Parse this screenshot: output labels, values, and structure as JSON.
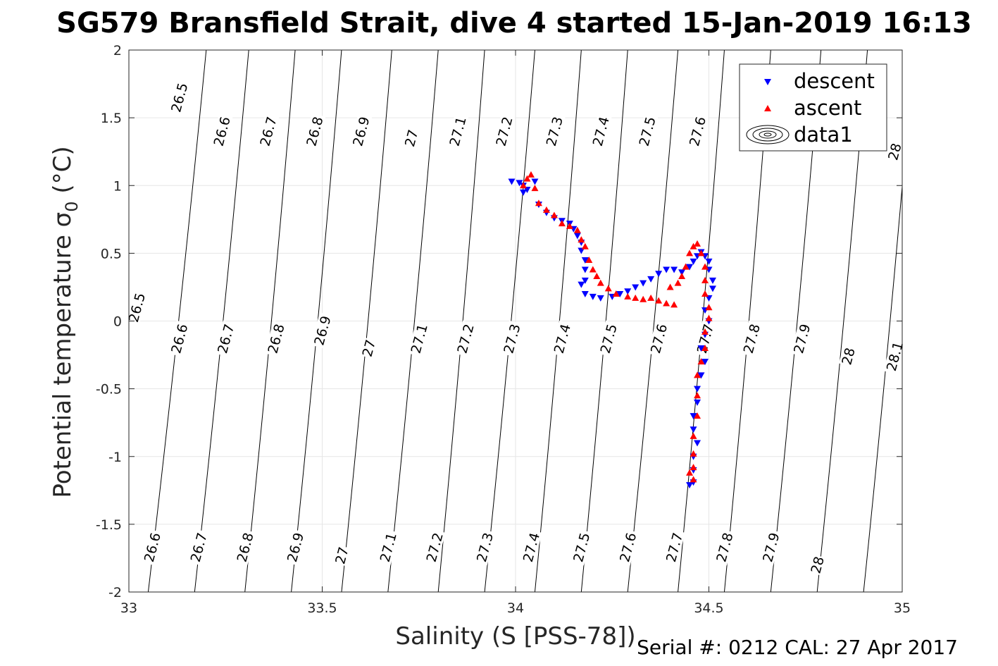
{
  "title": "SG579 Bransfield Strait, dive 4 started 15-Jan-2019 16:13",
  "footer": "Serial #: 0212  CAL: 27 Apr 2017",
  "chart_data": {
    "type": "scatter",
    "xlabel": "Salinity (S [PSS-78])",
    "ylabel_main": "Potential temperature σ",
    "ylabel_sub": "0",
    "ylabel_unit": " (°C)",
    "xlim": [
      33,
      35
    ],
    "ylim": [
      -2,
      2
    ],
    "xticks": [
      33,
      33.5,
      34,
      34.5,
      35
    ],
    "xtick_labels": [
      "33",
      "33.5",
      "34",
      "34.5",
      "35"
    ],
    "yticks": [
      -2,
      -1.5,
      -1,
      -0.5,
      0,
      0.5,
      1,
      1.5,
      2
    ],
    "ytick_labels": [
      "-2",
      "-1.5",
      "-1",
      "-0.5",
      "0",
      "0.5",
      "1",
      "1.5",
      "2"
    ],
    "grid": true,
    "legend_position": "top-right",
    "legend": [
      "descent",
      "ascent",
      "data1"
    ],
    "colors": {
      "descent": "#0000ff",
      "ascent": "#ff0000",
      "contour": "#000000",
      "grid": "#e6e6e6"
    },
    "contours": [
      {
        "x_bottom": 33.05,
        "x_top": 33.2
      },
      {
        "x_bottom": 33.17,
        "x_top": 33.31
      },
      {
        "x_bottom": 33.3,
        "x_top": 33.43
      },
      {
        "x_bottom": 33.42,
        "x_top": 33.55
      },
      {
        "x_bottom": 33.55,
        "x_top": 33.68
      },
      {
        "x_bottom": 33.67,
        "x_top": 33.8
      },
      {
        "x_bottom": 33.8,
        "x_top": 33.92
      },
      {
        "x_bottom": 33.92,
        "x_top": 34.05
      },
      {
        "x_bottom": 34.05,
        "x_top": 34.17
      },
      {
        "x_bottom": 34.17,
        "x_top": 34.29
      },
      {
        "x_bottom": 34.29,
        "x_top": 34.42
      },
      {
        "x_bottom": 34.42,
        "x_top": 34.54
      },
      {
        "x_bottom": 34.54,
        "x_top": 34.66
      },
      {
        "x_bottom": 34.66,
        "x_top": 34.79
      },
      {
        "x_bottom": 34.78,
        "x_top": 34.91
      },
      {
        "x_bottom": 34.9,
        "x_top": 35.03
      },
      {
        "x_bottom": 35.03,
        "x_top": 35.15
      }
    ],
    "contour_labels": [
      {
        "text": "26.5",
        "x": 33.13,
        "y": 1.65
      },
      {
        "text": "26.6",
        "x": 33.24,
        "y": 1.4
      },
      {
        "text": "26.7",
        "x": 33.36,
        "y": 1.4
      },
      {
        "text": "26.8",
        "x": 33.48,
        "y": 1.4
      },
      {
        "text": "26.9",
        "x": 33.6,
        "y": 1.4
      },
      {
        "text": "27",
        "x": 33.73,
        "y": 1.35
      },
      {
        "text": "27.1",
        "x": 33.85,
        "y": 1.4
      },
      {
        "text": "27.2",
        "x": 33.97,
        "y": 1.4
      },
      {
        "text": "27.3",
        "x": 34.1,
        "y": 1.4
      },
      {
        "text": "27.4",
        "x": 34.22,
        "y": 1.4
      },
      {
        "text": "27.5",
        "x": 34.34,
        "y": 1.4
      },
      {
        "text": "27.6",
        "x": 34.47,
        "y": 1.4
      },
      {
        "text": "28",
        "x": 34.98,
        "y": 1.25
      },
      {
        "text": "26.5",
        "x": 33.02,
        "y": 0.1
      },
      {
        "text": "26.6",
        "x": 33.13,
        "y": -0.13
      },
      {
        "text": "26.7",
        "x": 33.25,
        "y": -0.13
      },
      {
        "text": "26.8",
        "x": 33.38,
        "y": -0.13
      },
      {
        "text": "26.9",
        "x": 33.5,
        "y": -0.07
      },
      {
        "text": "27",
        "x": 33.62,
        "y": -0.2
      },
      {
        "text": "27.1",
        "x": 33.75,
        "y": -0.13
      },
      {
        "text": "27.2",
        "x": 33.87,
        "y": -0.13
      },
      {
        "text": "27.3",
        "x": 33.99,
        "y": -0.13
      },
      {
        "text": "27.4",
        "x": 34.12,
        "y": -0.13
      },
      {
        "text": "27.5",
        "x": 34.24,
        "y": -0.13
      },
      {
        "text": "27.6",
        "x": 34.37,
        "y": -0.13
      },
      {
        "text": "27.7",
        "x": 34.49,
        "y": -0.13
      },
      {
        "text": "27.8",
        "x": 34.61,
        "y": -0.13
      },
      {
        "text": "27.9",
        "x": 34.74,
        "y": -0.13
      },
      {
        "text": "28",
        "x": 34.86,
        "y": -0.26
      },
      {
        "text": "28.1",
        "x": 34.98,
        "y": -0.26
      },
      {
        "text": "26.6",
        "x": 33.06,
        "y": -1.67
      },
      {
        "text": "26.7",
        "x": 33.18,
        "y": -1.67
      },
      {
        "text": "26.8",
        "x": 33.3,
        "y": -1.67
      },
      {
        "text": "26.9",
        "x": 33.43,
        "y": -1.67
      },
      {
        "text": "27",
        "x": 33.55,
        "y": -1.73
      },
      {
        "text": "27.1",
        "x": 33.67,
        "y": -1.67
      },
      {
        "text": "27.2",
        "x": 33.79,
        "y": -1.67
      },
      {
        "text": "27.3",
        "x": 33.92,
        "y": -1.67
      },
      {
        "text": "27.4",
        "x": 34.04,
        "y": -1.67
      },
      {
        "text": "27.5",
        "x": 34.17,
        "y": -1.67
      },
      {
        "text": "27.6",
        "x": 34.29,
        "y": -1.67
      },
      {
        "text": "27.7",
        "x": 34.41,
        "y": -1.67
      },
      {
        "text": "27.8",
        "x": 34.54,
        "y": -1.67
      },
      {
        "text": "27.9",
        "x": 34.66,
        "y": -1.67
      },
      {
        "text": "28",
        "x": 34.78,
        "y": -1.8
      }
    ],
    "series": [
      {
        "name": "descent",
        "marker": "triangle-down",
        "points": [
          [
            33.99,
            1.03
          ],
          [
            34.01,
            1.02
          ],
          [
            34.02,
            1.0
          ],
          [
            34.03,
            0.97
          ],
          [
            34.05,
            1.03
          ],
          [
            34.02,
            0.95
          ],
          [
            34.06,
            0.86
          ],
          [
            34.08,
            0.8
          ],
          [
            34.1,
            0.76
          ],
          [
            34.12,
            0.74
          ],
          [
            34.14,
            0.72
          ],
          [
            34.15,
            0.68
          ],
          [
            34.16,
            0.63
          ],
          [
            34.17,
            0.58
          ],
          [
            34.17,
            0.52
          ],
          [
            34.18,
            0.45
          ],
          [
            34.18,
            0.38
          ],
          [
            34.18,
            0.3
          ],
          [
            34.17,
            0.27
          ],
          [
            34.18,
            0.2
          ],
          [
            34.2,
            0.18
          ],
          [
            34.22,
            0.17
          ],
          [
            34.25,
            0.18
          ],
          [
            34.27,
            0.2
          ],
          [
            34.29,
            0.22
          ],
          [
            34.31,
            0.25
          ],
          [
            34.33,
            0.28
          ],
          [
            34.35,
            0.31
          ],
          [
            34.37,
            0.35
          ],
          [
            34.39,
            0.38
          ],
          [
            34.41,
            0.38
          ],
          [
            34.43,
            0.36
          ],
          [
            34.45,
            0.4
          ],
          [
            34.46,
            0.44
          ],
          [
            34.47,
            0.48
          ],
          [
            34.48,
            0.51
          ],
          [
            34.49,
            0.48
          ],
          [
            34.5,
            0.44
          ],
          [
            34.5,
            0.38
          ],
          [
            34.51,
            0.3
          ],
          [
            34.51,
            0.24
          ],
          [
            34.5,
            0.17
          ],
          [
            34.49,
            0.08
          ],
          [
            34.5,
            0.0
          ],
          [
            34.49,
            -0.1
          ],
          [
            34.48,
            -0.2
          ],
          [
            34.49,
            -0.3
          ],
          [
            34.48,
            -0.4
          ],
          [
            34.47,
            -0.5
          ],
          [
            34.47,
            -0.6
          ],
          [
            34.46,
            -0.7
          ],
          [
            34.46,
            -0.8
          ],
          [
            34.47,
            -0.9
          ],
          [
            34.46,
            -1.0
          ],
          [
            34.46,
            -1.1
          ],
          [
            34.46,
            -1.19
          ],
          [
            34.45,
            -1.21
          ]
        ]
      },
      {
        "name": "ascent",
        "marker": "triangle-up",
        "points": [
          [
            34.03,
            1.05
          ],
          [
            34.04,
            1.08
          ],
          [
            34.02,
            1.0
          ],
          [
            34.05,
            0.98
          ],
          [
            34.06,
            0.87
          ],
          [
            34.08,
            0.82
          ],
          [
            34.1,
            0.78
          ],
          [
            34.12,
            0.72
          ],
          [
            34.14,
            0.7
          ],
          [
            34.16,
            0.67
          ],
          [
            34.17,
            0.6
          ],
          [
            34.18,
            0.55
          ],
          [
            34.19,
            0.45
          ],
          [
            34.2,
            0.38
          ],
          [
            34.21,
            0.33
          ],
          [
            34.22,
            0.28
          ],
          [
            34.24,
            0.24
          ],
          [
            34.26,
            0.2
          ],
          [
            34.29,
            0.18
          ],
          [
            34.31,
            0.17
          ],
          [
            34.33,
            0.16
          ],
          [
            34.35,
            0.17
          ],
          [
            34.37,
            0.15
          ],
          [
            34.39,
            0.13
          ],
          [
            34.41,
            0.12
          ],
          [
            34.4,
            0.25
          ],
          [
            34.42,
            0.28
          ],
          [
            34.43,
            0.33
          ],
          [
            34.44,
            0.4
          ],
          [
            34.45,
            0.5
          ],
          [
            34.46,
            0.55
          ],
          [
            34.47,
            0.57
          ],
          [
            34.48,
            0.5
          ],
          [
            34.49,
            0.4
          ],
          [
            34.49,
            0.3
          ],
          [
            34.49,
            0.2
          ],
          [
            34.5,
            0.1
          ],
          [
            34.5,
            0.02
          ],
          [
            34.49,
            -0.08
          ],
          [
            34.49,
            -0.2
          ],
          [
            34.48,
            -0.3
          ],
          [
            34.47,
            -0.4
          ],
          [
            34.47,
            -0.55
          ],
          [
            34.47,
            -0.7
          ],
          [
            34.46,
            -0.85
          ],
          [
            34.46,
            -0.98
          ],
          [
            34.46,
            -1.08
          ],
          [
            34.45,
            -1.12
          ],
          [
            34.46,
            -1.17
          ]
        ]
      }
    ]
  }
}
